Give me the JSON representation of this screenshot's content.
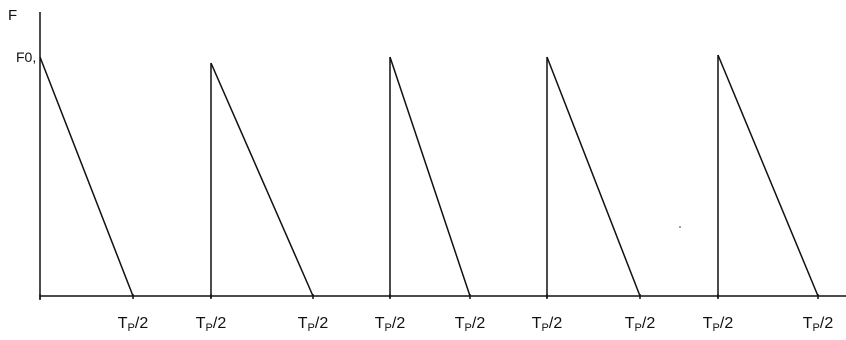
{
  "axis": {
    "y_label": "F",
    "peak_label": "F0,",
    "time_label": "TP/2"
  },
  "pulses": [
    {
      "start_label": "",
      "end_label": "TP/2"
    },
    {
      "start_label": "TP/2",
      "end_label": "TP/2"
    },
    {
      "start_label": "TP/2",
      "end_label": "TP/2"
    },
    {
      "start_label": "TP/2",
      "end_label": "TP/2"
    },
    {
      "start_label": "TP/2",
      "end_label": "TP/2"
    }
  ],
  "colors": {
    "line": "#111111",
    "background": "#ffffff"
  }
}
